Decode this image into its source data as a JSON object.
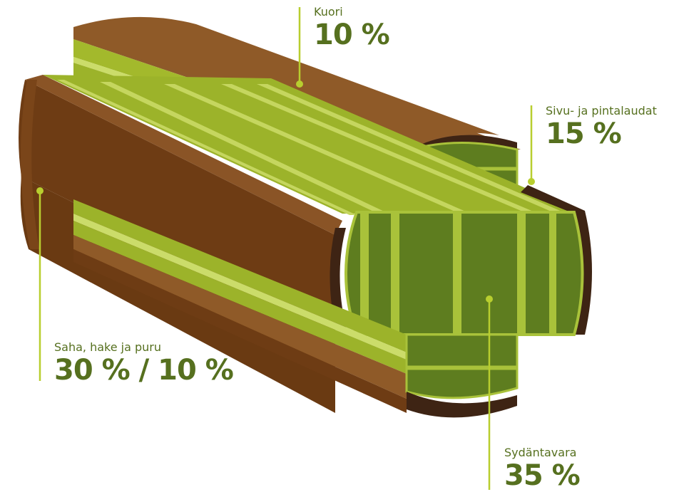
{
  "callouts": {
    "kuori": {
      "label": "Kuori",
      "value": "10 %"
    },
    "sivu": {
      "label": "Sivu- ja pintalaudat",
      "value": "15 %"
    },
    "saha": {
      "label": "Saha, hake ja puru",
      "value": "30 % / 10 %"
    },
    "sydan": {
      "label": "Sydäntavara",
      "value": "35 %"
    }
  },
  "colors": {
    "bark": "#7a4519",
    "bark_top": "#925b2a",
    "bark_dark": "#3e2414",
    "side_board": "#9cb32a",
    "side_board_light": "#c2d45a",
    "heart_wood": "#5e7d1f",
    "heart_gap": "#a9c23a",
    "leader_line": "#b8ce2f",
    "text": "#56701f"
  }
}
